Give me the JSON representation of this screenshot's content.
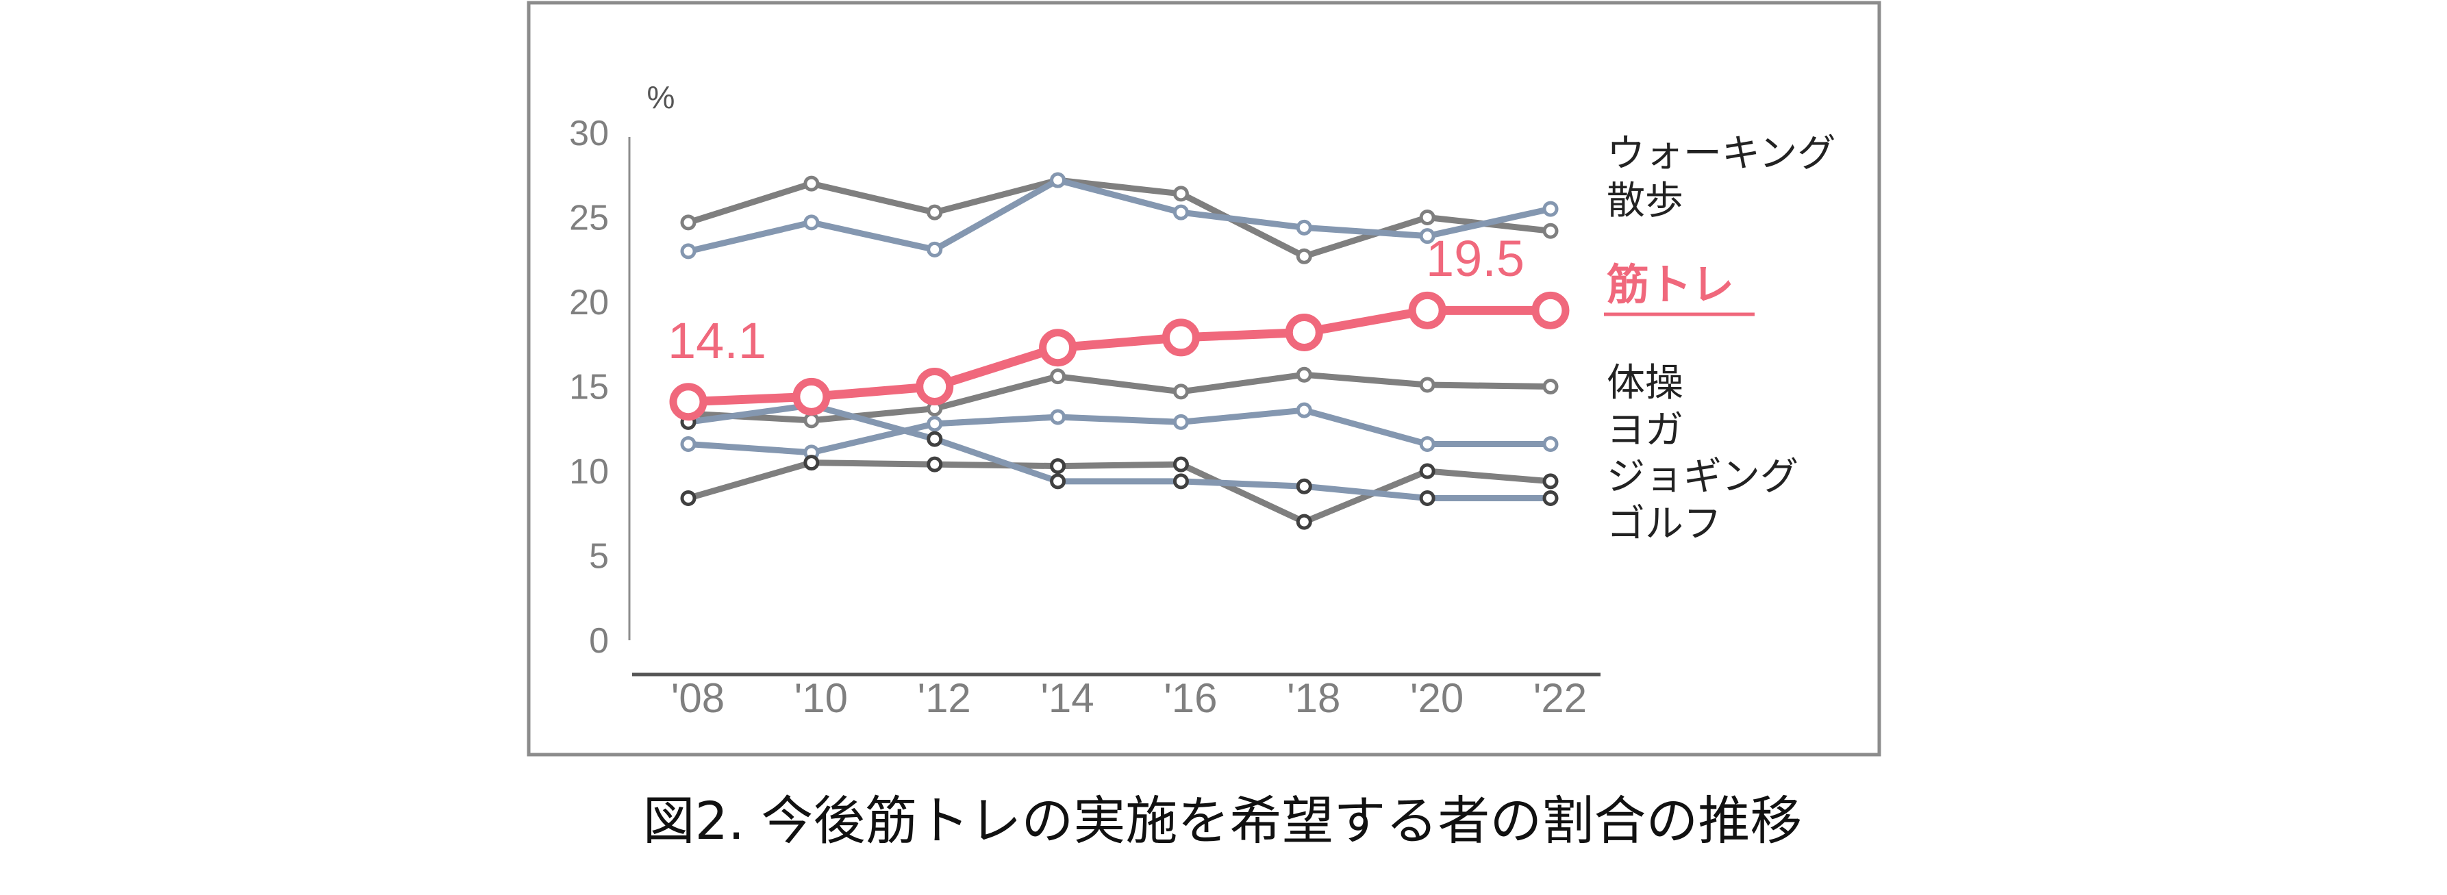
{
  "caption": "図2. 今後筋トレの実施を希望する者の割合の推移",
  "chart_data": {
    "type": "line",
    "title": "",
    "ylabel": "%",
    "xlabel": "",
    "ylim": [
      0,
      30
    ],
    "yticks": [
      "0",
      "5",
      "10",
      "15",
      "20",
      "25",
      "30"
    ],
    "categories": [
      "'08",
      "'10",
      "'12",
      "'14",
      "'16",
      "'18",
      "'20",
      "'22"
    ],
    "grid": false,
    "legend": "right (labels at line ends)",
    "colors": {
      "gray": "#7f7f7f",
      "blue": "#8497b0",
      "highlight": "#f0687c",
      "dark_marker": "#404040"
    },
    "series": [
      {
        "name": "ウォーキング",
        "color": "#7f7f7f",
        "values": [
          24.7,
          27.0,
          25.3,
          27.2,
          26.4,
          22.7,
          25.0,
          24.2
        ]
      },
      {
        "name": "散歩",
        "color": "#8497b0",
        "values": [
          23.0,
          24.7,
          23.1,
          27.2,
          25.3,
          24.4,
          23.9,
          25.5
        ]
      },
      {
        "name": "筋トレ",
        "color": "#f0687c",
        "highlight": true,
        "values": [
          14.1,
          14.4,
          15.0,
          17.3,
          17.9,
          18.2,
          19.5,
          19.5
        ]
      },
      {
        "name": "体操",
        "color": "#7f7f7f",
        "values": [
          13.4,
          13.0,
          13.7,
          15.6,
          14.7,
          15.7,
          15.1,
          15.0
        ]
      },
      {
        "name": "ヨガ",
        "color": "#8497b0",
        "values": [
          11.6,
          11.1,
          12.8,
          13.2,
          12.9,
          13.6,
          11.6,
          11.6
        ]
      },
      {
        "name": "ジョギング",
        "color": "#7f7f7f",
        "values": [
          8.4,
          10.5,
          10.4,
          10.3,
          10.4,
          7.0,
          10.0,
          9.4
        ]
      },
      {
        "name": "ゴルフ",
        "color": "#8497b0",
        "values": [
          12.9,
          13.9,
          11.9,
          9.4,
          9.4,
          9.1,
          8.4,
          8.4
        ]
      }
    ],
    "data_labels": [
      {
        "series": "筋トレ",
        "category": "'08",
        "text": "14.1"
      },
      {
        "series": "筋トレ",
        "category": "'22",
        "text": "19.5"
      }
    ]
  }
}
